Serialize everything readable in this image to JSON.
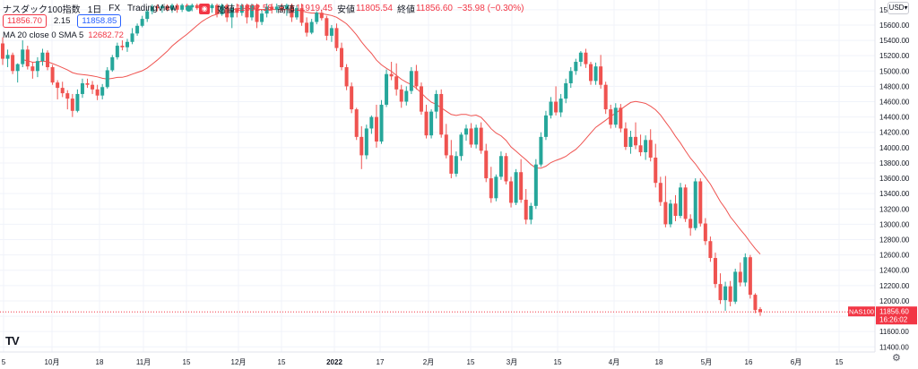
{
  "header": {
    "symbol_title": "ナスダック100指数",
    "interval": "1日",
    "exchange": "FX",
    "source": "TradingView",
    "eye_icon": "eye-icon",
    "ohlc": [
      {
        "label": "始値",
        "value": "11892.58"
      },
      {
        "label": "高値",
        "value": "11919.45"
      },
      {
        "label": "安値",
        "value": "11805.54"
      },
      {
        "label": "終値",
        "value": "11856.60"
      },
      {
        "label": "",
        "value": "−35.98 (−0.30%)"
      }
    ],
    "sell_price": "11856.70",
    "spread": "2.15",
    "buy_price": "11858.85",
    "indicator_label": "MA 20 close 0 SMA 5",
    "indicator_value": "12682.72",
    "currency": "USD",
    "currency_chevron": "chevron-down-icon",
    "settings_icon": "gear-icon",
    "logo_icon": "tradingview-logo-icon",
    "logo_text": "TV"
  },
  "chart_data": {
    "type": "candlestick",
    "y_ticks": [
      11400,
      11600,
      11800,
      12000,
      12200,
      12400,
      12600,
      12800,
      13000,
      13200,
      13400,
      13600,
      13800,
      14000,
      14200,
      14400,
      14600,
      14800,
      15000,
      15200,
      15400,
      15600,
      15800
    ],
    "ylim": [
      11380,
      15880
    ],
    "x_ticks": [
      "5",
      "10月",
      "18",
      "11月",
      "15",
      "12月",
      "15",
      "2022",
      "17",
      "2月",
      "15",
      "3月",
      "15",
      "4月",
      "18",
      "5月",
      "16",
      "6月",
      "15"
    ],
    "grid": true,
    "colors": {
      "up": "#26a69a",
      "down": "#ef5350",
      "ma": "#ef5350",
      "last": "#f23645"
    },
    "last_price": {
      "symbol": "NAS100",
      "price": "11856.60",
      "countdown": "16:26:02",
      "value": 11856.6
    },
    "ohlc": [
      [
        15360,
        15440,
        15080,
        15160
      ],
      [
        15160,
        15280,
        15050,
        15210
      ],
      [
        15210,
        15240,
        14960,
        15000
      ],
      [
        15000,
        15100,
        14850,
        15090
      ],
      [
        15090,
        15400,
        15050,
        15280
      ],
      [
        15280,
        15330,
        15020,
        15060
      ],
      [
        15060,
        15120,
        14900,
        15000
      ],
      [
        15000,
        15180,
        14920,
        15130
      ],
      [
        15130,
        15290,
        15070,
        15240
      ],
      [
        15240,
        15270,
        15010,
        15050
      ],
      [
        15050,
        15080,
        14820,
        14850
      ],
      [
        14850,
        14880,
        14630,
        14780
      ],
      [
        14780,
        14860,
        14660,
        14710
      ],
      [
        14710,
        14750,
        14500,
        14640
      ],
      [
        14640,
        14700,
        14400,
        14480
      ],
      [
        14480,
        14760,
        14460,
        14700
      ],
      [
        14700,
        14900,
        14650,
        14840
      ],
      [
        14840,
        14900,
        14780,
        14820
      ],
      [
        14820,
        14870,
        14700,
        14760
      ],
      [
        14760,
        14820,
        14620,
        14680
      ],
      [
        14680,
        14830,
        14630,
        14790
      ],
      [
        14790,
        15050,
        14770,
        15010
      ],
      [
        15010,
        15210,
        14990,
        15180
      ],
      [
        15180,
        15370,
        15150,
        15330
      ],
      [
        15330,
        15400,
        15270,
        15310
      ],
      [
        15310,
        15420,
        15250,
        15380
      ],
      [
        15380,
        15560,
        15350,
        15490
      ],
      [
        15490,
        15620,
        15460,
        15590
      ],
      [
        15590,
        15720,
        15570,
        15680
      ],
      [
        15680,
        15800,
        15640,
        15780
      ],
      [
        15780,
        15870,
        15740,
        15840
      ],
      [
        15840,
        15870,
        15780,
        15820
      ],
      [
        15820,
        15870,
        15760,
        15850
      ],
      [
        15850,
        15870,
        15780,
        15800
      ],
      [
        15800,
        15880,
        15760,
        15860
      ],
      [
        15860,
        15880,
        15760,
        15800
      ],
      [
        15800,
        15880,
        15770,
        15860
      ],
      [
        15860,
        15880,
        15790,
        15830
      ],
      [
        15830,
        15880,
        15780,
        15860
      ],
      [
        15860,
        15880,
        15800,
        15820
      ],
      [
        15820,
        15880,
        15790,
        15850
      ],
      [
        15850,
        15880,
        15790,
        15820
      ],
      [
        15820,
        15880,
        15760,
        15860
      ],
      [
        15860,
        15880,
        15700,
        15740
      ],
      [
        15740,
        15880,
        15720,
        15860
      ],
      [
        15860,
        15880,
        15640,
        15700
      ],
      [
        15700,
        15880,
        15560,
        15820
      ],
      [
        15820,
        15880,
        15700,
        15760
      ],
      [
        15760,
        15880,
        15720,
        15860
      ],
      [
        15860,
        15880,
        15620,
        15700
      ],
      [
        15700,
        15880,
        15660,
        15860
      ],
      [
        15860,
        15880,
        15560,
        15640
      ],
      [
        15640,
        15800,
        15600,
        15750
      ],
      [
        15750,
        15880,
        15700,
        15840
      ],
      [
        15840,
        15880,
        15750,
        15800
      ],
      [
        15800,
        15880,
        15760,
        15840
      ],
      [
        15840,
        15880,
        15780,
        15810
      ],
      [
        15810,
        15880,
        15720,
        15860
      ],
      [
        15860,
        15880,
        15640,
        15700
      ],
      [
        15700,
        15860,
        15670,
        15820
      ],
      [
        15820,
        15880,
        15590,
        15630
      ],
      [
        15630,
        15700,
        15450,
        15500
      ],
      [
        15500,
        15680,
        15480,
        15640
      ],
      [
        15640,
        15780,
        15610,
        15760
      ],
      [
        15760,
        15800,
        15660,
        15690
      ],
      [
        15690,
        15720,
        15400,
        15460
      ],
      [
        15460,
        15600,
        15380,
        15560
      ],
      [
        15560,
        15620,
        15260,
        15300
      ],
      [
        15300,
        15370,
        15010,
        15050
      ],
      [
        15050,
        15090,
        14750,
        14800
      ],
      [
        14800,
        14850,
        14450,
        14500
      ],
      [
        14500,
        14520,
        14100,
        14140
      ],
      [
        14140,
        14280,
        13720,
        13900
      ],
      [
        13900,
        14300,
        13850,
        14250
      ],
      [
        14250,
        14420,
        14180,
        14400
      ],
      [
        14400,
        14560,
        14000,
        14080
      ],
      [
        14080,
        14620,
        14050,
        14560
      ],
      [
        14560,
        15020,
        14530,
        14960
      ],
      [
        14960,
        15120,
        14880,
        14930
      ],
      [
        14930,
        15100,
        14680,
        14760
      ],
      [
        14760,
        14820,
        14520,
        14600
      ],
      [
        14600,
        14800,
        14550,
        14740
      ],
      [
        14740,
        15050,
        14700,
        15000
      ],
      [
        15000,
        15080,
        14760,
        14800
      ],
      [
        14800,
        14850,
        14430,
        14470
      ],
      [
        14470,
        14560,
        14120,
        14160
      ],
      [
        14160,
        14500,
        14120,
        14470
      ],
      [
        14470,
        14750,
        14380,
        14700
      ],
      [
        14700,
        14760,
        14130,
        14170
      ],
      [
        14170,
        14310,
        13860,
        13900
      ],
      [
        13900,
        14100,
        13600,
        13660
      ],
      [
        13660,
        13950,
        13620,
        13890
      ],
      [
        13890,
        14200,
        13830,
        14170
      ],
      [
        14170,
        14300,
        14090,
        14250
      ],
      [
        14250,
        14320,
        14000,
        14040
      ],
      [
        14040,
        14300,
        13990,
        14260
      ],
      [
        14260,
        14330,
        13920,
        13960
      ],
      [
        13960,
        14050,
        13550,
        13600
      ],
      [
        13600,
        13750,
        13280,
        13340
      ],
      [
        13340,
        13650,
        13300,
        13620
      ],
      [
        13620,
        13950,
        13580,
        13890
      ],
      [
        13890,
        13930,
        13520,
        13560
      ],
      [
        13560,
        13620,
        13220,
        13280
      ],
      [
        13280,
        13720,
        13250,
        13680
      ],
      [
        13680,
        13850,
        13280,
        13320
      ],
      [
        13320,
        13460,
        13000,
        13060
      ],
      [
        13060,
        13280,
        13000,
        13240
      ],
      [
        13240,
        13850,
        13200,
        13780
      ],
      [
        13780,
        14200,
        13750,
        14140
      ],
      [
        14140,
        14480,
        14100,
        14420
      ],
      [
        14420,
        14660,
        14380,
        14600
      ],
      [
        14600,
        14800,
        14420,
        14460
      ],
      [
        14460,
        14700,
        14400,
        14640
      ],
      [
        14640,
        14900,
        14580,
        14840
      ],
      [
        14840,
        15050,
        14780,
        15000
      ],
      [
        15000,
        15160,
        14950,
        15120
      ],
      [
        15120,
        15260,
        15060,
        15240
      ],
      [
        15240,
        15290,
        15040,
        15090
      ],
      [
        15090,
        15120,
        14820,
        14870
      ],
      [
        14870,
        15110,
        14820,
        15060
      ],
      [
        15060,
        15210,
        14770,
        14820
      ],
      [
        14820,
        14860,
        14440,
        14500
      ],
      [
        14500,
        14560,
        14250,
        14300
      ],
      [
        14300,
        14580,
        14260,
        14520
      ],
      [
        14520,
        14570,
        14200,
        14250
      ],
      [
        14250,
        14330,
        13970,
        14010
      ],
      [
        14010,
        14220,
        13920,
        14140
      ],
      [
        14140,
        14330,
        13980,
        14030
      ],
      [
        14030,
        14170,
        13890,
        13940
      ],
      [
        13940,
        14160,
        13840,
        14100
      ],
      [
        14100,
        14240,
        13820,
        13870
      ],
      [
        13870,
        14050,
        13480,
        13540
      ],
      [
        13540,
        13620,
        13240,
        13290
      ],
      [
        13290,
        13630,
        12960,
        13000
      ],
      [
        13000,
        13320,
        12960,
        13270
      ],
      [
        13270,
        13380,
        13040,
        13110
      ],
      [
        13110,
        13540,
        13080,
        13480
      ],
      [
        13480,
        13520,
        13030,
        13070
      ],
      [
        13070,
        13130,
        12850,
        12950
      ],
      [
        12950,
        13600,
        12920,
        13560
      ],
      [
        13560,
        13600,
        12970,
        13010
      ],
      [
        13010,
        13080,
        12730,
        12780
      ],
      [
        12780,
        12840,
        12510,
        12560
      ],
      [
        12560,
        12630,
        12170,
        12220
      ],
      [
        12220,
        12360,
        11960,
        12010
      ],
      [
        12010,
        12250,
        11870,
        12190
      ],
      [
        12190,
        12260,
        11930,
        11990
      ],
      [
        11990,
        12420,
        11960,
        12380
      ],
      [
        12380,
        12500,
        12190,
        12240
      ],
      [
        12240,
        12620,
        12190,
        12570
      ],
      [
        12570,
        12600,
        12030,
        12080
      ],
      [
        12080,
        12100,
        11840,
        11880
      ],
      [
        11892.58,
        11919.45,
        11805.54,
        11856.6
      ]
    ]
  }
}
